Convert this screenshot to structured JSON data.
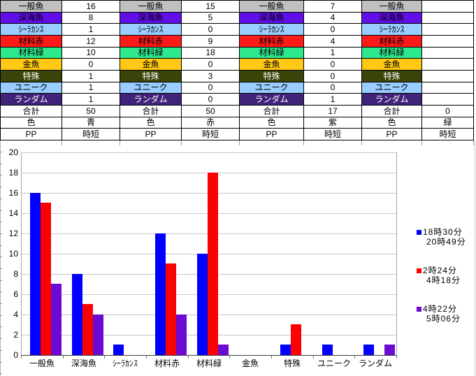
{
  "table": {
    "rows": [
      {
        "label": "一般魚",
        "bg": "#C0C0C0",
        "fg": "#000000",
        "values": [
          "16",
          "15",
          "7",
          ""
        ]
      },
      {
        "label": "深海魚",
        "bg": "#6010E6",
        "fg": "#000000",
        "values": [
          "8",
          "5",
          "4",
          ""
        ]
      },
      {
        "label": "ｼｰﾗｶﾝｽ",
        "bg": "#99CCFF",
        "fg": "#000000",
        "values": [
          "1",
          "0",
          "0",
          ""
        ]
      },
      {
        "label": "材料赤",
        "bg": "#FF1A1A",
        "fg": "#000000",
        "values": [
          "12",
          "9",
          "4",
          ""
        ]
      },
      {
        "label": "材料緑",
        "bg": "#2EE88D",
        "fg": "#000000",
        "values": [
          "10",
          "18",
          "1",
          ""
        ]
      },
      {
        "label": "金魚",
        "bg": "#FFC814",
        "fg": "#000000",
        "values": [
          "0",
          "0",
          "0",
          ""
        ]
      },
      {
        "label": "特殊",
        "bg": "#3A4408",
        "fg": "#FFFFFF",
        "values": [
          "1",
          "3",
          "0",
          ""
        ]
      },
      {
        "label": "ユニーク",
        "bg": "#99CCFF",
        "fg": "#000000",
        "values": [
          "1",
          "0",
          "0",
          ""
        ]
      },
      {
        "label": "ランダム",
        "bg": "#402379",
        "fg": "#FFFFFF",
        "values": [
          "1",
          "0",
          "1",
          ""
        ]
      },
      {
        "label": "合計",
        "bg": "#FFFFFF",
        "fg": "#000000",
        "values": [
          "50",
          "50",
          "17",
          "0"
        ]
      },
      {
        "label": "色",
        "bg": "#FFFFFF",
        "fg": "#000000",
        "values": [
          "青",
          "赤",
          "紫",
          "緑"
        ]
      },
      {
        "label": "PP",
        "bg": "#FFFFFF",
        "fg": "#000000",
        "values": [
          "時短",
          "時短",
          "時短",
          "時短"
        ]
      }
    ]
  },
  "chart_data": {
    "type": "bar",
    "title": "",
    "xlabel": "",
    "ylabel": "",
    "categories": [
      "一般魚",
      "深海魚",
      "ｼｰﾗｶﾝｽ",
      "材料赤",
      "材料緑",
      "金魚",
      "特殊",
      "ユニーク",
      "ランダム"
    ],
    "series": [
      {
        "name": "18時30分 20時49分",
        "name_lines": [
          "18時30分",
          "20時49分"
        ],
        "color": "#0000FF",
        "values": [
          16,
          8,
          1,
          12,
          10,
          0,
          1,
          1,
          1
        ]
      },
      {
        "name": "2時24分 4時18分",
        "name_lines": [
          "2時24分",
          "4時18分"
        ],
        "color": "#FF0000",
        "values": [
          15,
          5,
          0,
          9,
          18,
          0,
          3,
          0,
          0
        ]
      },
      {
        "name": "4時22分 5時06分",
        "name_lines": [
          "4時22分",
          "5時06分"
        ],
        "color": "#6B0AD2",
        "values": [
          7,
          4,
          0,
          4,
          1,
          0,
          0,
          0,
          1
        ]
      }
    ],
    "ylim": [
      0,
      20
    ],
    "ytick_step": 2,
    "yticks": [
      0,
      2,
      4,
      6,
      8,
      10,
      12,
      14,
      16,
      18,
      20
    ],
    "grid": true,
    "legend_position": "right",
    "colors": {
      "series_blue": "#0000FF",
      "series_red": "#FF0000",
      "series_purple": "#6B0AD2",
      "gridline": "#C9C9C9",
      "axis": "#404040"
    }
  }
}
